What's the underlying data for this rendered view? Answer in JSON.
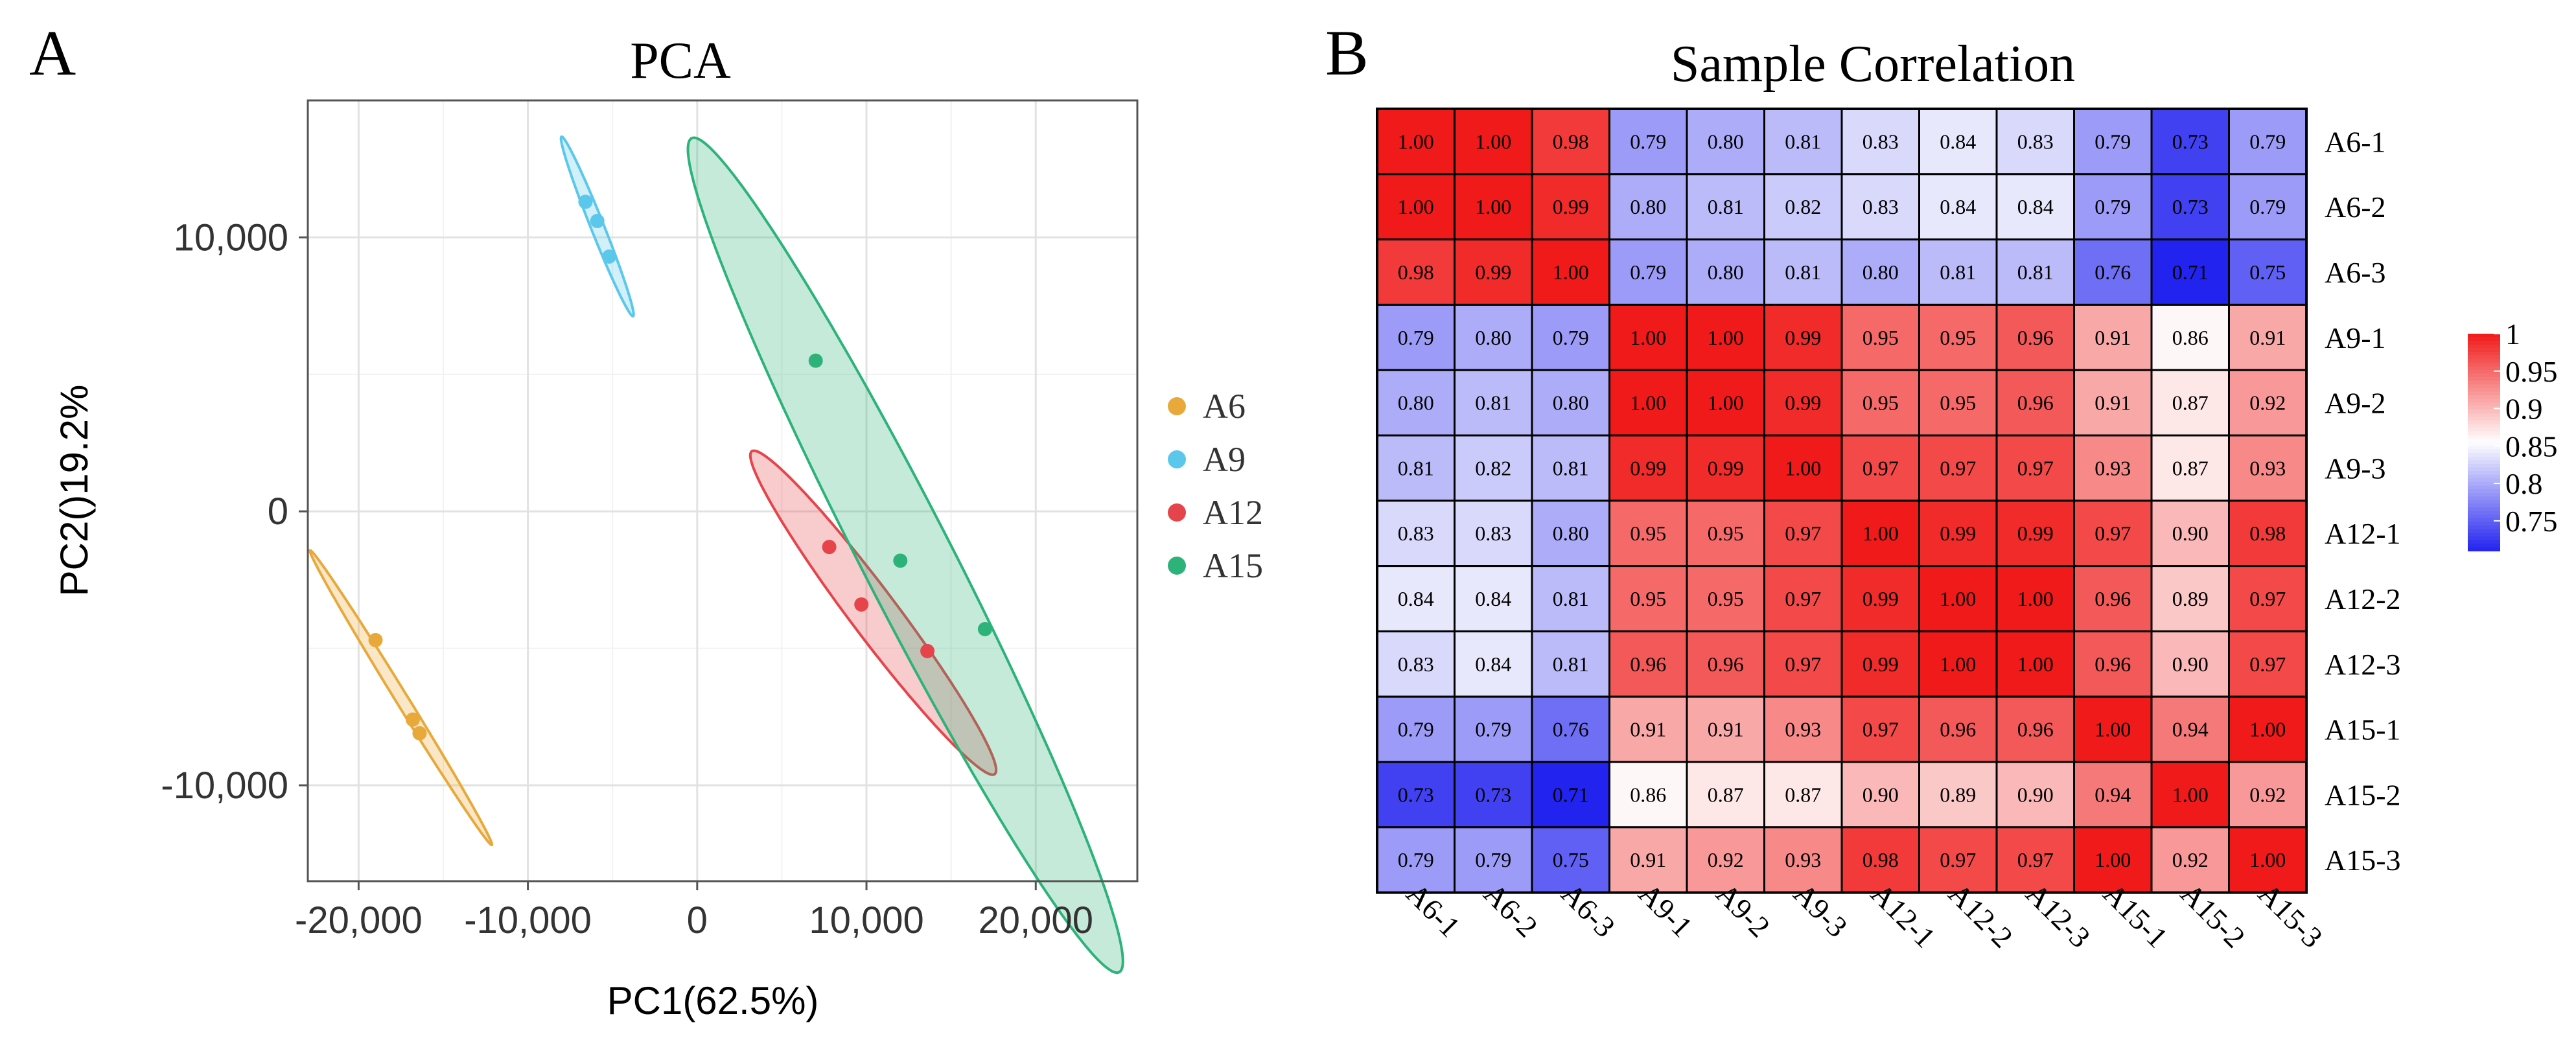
{
  "panels": {
    "a_label": "A",
    "b_label": "B"
  },
  "chart_data": [
    {
      "type": "scatter",
      "title": "PCA",
      "xlabel": "PC1(62.5%)",
      "ylabel": "PC2()19.2%",
      "xlim": [
        -23000,
        26000
      ],
      "ylim": [
        -13500,
        15000
      ],
      "xticks": [
        -20000,
        -10000,
        0,
        10000,
        20000
      ],
      "xtick_labels": [
        "-20,000",
        "-10,000",
        "0",
        "10,000",
        "20,000"
      ],
      "yticks": [
        10000,
        0,
        -10000
      ],
      "ytick_labels": [
        "10,000",
        "0",
        "-10,000"
      ],
      "grid": true,
      "legend_position": "right",
      "series": [
        {
          "name": "A6",
          "color": "#E8A93A",
          "points": [
            [
              -19000,
              -4700
            ],
            [
              -16800,
              -7600
            ],
            [
              -16400,
              -8100
            ]
          ],
          "ellipse": {
            "center": [
              -17500,
              -6800
            ],
            "semi_major": 7600,
            "semi_minor": 300,
            "angle_deg": -45
          }
        },
        {
          "name": "A9",
          "color": "#5BC8EB",
          "points": [
            [
              -6600,
              11300
            ],
            [
              -5900,
              10600
            ],
            [
              -5200,
              9300
            ]
          ],
          "ellipse": {
            "center": [
              -5900,
              10400
            ],
            "semi_major": 3900,
            "semi_minor": 350,
            "angle_deg": -57
          }
        },
        {
          "name": "A12",
          "color": "#E5444B",
          "points": [
            [
              7800,
              -1300
            ],
            [
              9700,
              -3400
            ],
            [
              13600,
              -5100
            ]
          ],
          "ellipse": {
            "center": [
              10400,
              -3700
            ],
            "semi_major": 9300,
            "semi_minor": 1100,
            "angle_deg": -39
          }
        },
        {
          "name": "A15",
          "color": "#2DB37A",
          "points": [
            [
              7000,
              5500
            ],
            [
              12000,
              -1800
            ],
            [
              17000,
              -4300
            ]
          ],
          "ellipse": {
            "center": [
              12300,
              -1600
            ],
            "semi_major": 19800,
            "semi_minor": 2300,
            "angle_deg": -50
          }
        }
      ]
    },
    {
      "type": "heatmap",
      "title": "Sample Correlation",
      "rows": [
        "A6-1",
        "A6-2",
        "A6-3",
        "A9-1",
        "A9-2",
        "A9-3",
        "A12-1",
        "A12-2",
        "A12-3",
        "A15-1",
        "A15-2",
        "A15-3"
      ],
      "columns": [
        "A6-1",
        "A6-2",
        "A6-3",
        "A9-1",
        "A9-2",
        "A9-3",
        "A12-1",
        "A12-2",
        "A12-3",
        "A15-1",
        "A15-2",
        "A15-3"
      ],
      "values": [
        [
          1.0,
          1.0,
          0.98,
          0.79,
          0.8,
          0.81,
          0.83,
          0.84,
          0.83,
          0.79,
          0.73,
          0.79
        ],
        [
          1.0,
          1.0,
          0.99,
          0.8,
          0.81,
          0.82,
          0.83,
          0.84,
          0.84,
          0.79,
          0.73,
          0.79
        ],
        [
          0.98,
          0.99,
          1.0,
          0.79,
          0.8,
          0.81,
          0.8,
          0.81,
          0.81,
          0.76,
          0.71,
          0.75
        ],
        [
          0.79,
          0.8,
          0.79,
          1.0,
          1.0,
          0.99,
          0.95,
          0.95,
          0.96,
          0.91,
          0.86,
          0.91
        ],
        [
          0.8,
          0.81,
          0.8,
          1.0,
          1.0,
          0.99,
          0.95,
          0.95,
          0.96,
          0.91,
          0.87,
          0.92
        ],
        [
          0.81,
          0.82,
          0.81,
          0.99,
          0.99,
          1.0,
          0.97,
          0.97,
          0.97,
          0.93,
          0.87,
          0.93
        ],
        [
          0.83,
          0.83,
          0.8,
          0.95,
          0.95,
          0.97,
          1.0,
          0.99,
          0.99,
          0.97,
          0.9,
          0.98
        ],
        [
          0.84,
          0.84,
          0.81,
          0.95,
          0.95,
          0.97,
          0.99,
          1.0,
          1.0,
          0.96,
          0.89,
          0.97
        ],
        [
          0.83,
          0.84,
          0.81,
          0.96,
          0.96,
          0.97,
          0.99,
          1.0,
          1.0,
          0.96,
          0.9,
          0.97
        ],
        [
          0.79,
          0.79,
          0.76,
          0.91,
          0.91,
          0.93,
          0.97,
          0.96,
          0.96,
          1.0,
          0.94,
          1.0
        ],
        [
          0.73,
          0.73,
          0.71,
          0.86,
          0.87,
          0.87,
          0.9,
          0.89,
          0.9,
          0.94,
          1.0,
          0.92
        ],
        [
          0.79,
          0.79,
          0.75,
          0.91,
          0.92,
          0.93,
          0.98,
          0.97,
          0.97,
          1.0,
          0.92,
          1.0
        ]
      ],
      "colorscale": {
        "low": "#2323F0",
        "mid": "#FFFFFF",
        "high": "#F01A1A",
        "low_value": 0.71,
        "mid_value": 0.855,
        "high_value": 1.0
      },
      "colorbar_ticks": [
        1,
        0.95,
        0.9,
        0.85,
        0.8,
        0.75
      ],
      "colorbar_labels": [
        "1",
        "0.95",
        "0.9",
        "0.85",
        "0.8",
        "0.75"
      ]
    }
  ]
}
